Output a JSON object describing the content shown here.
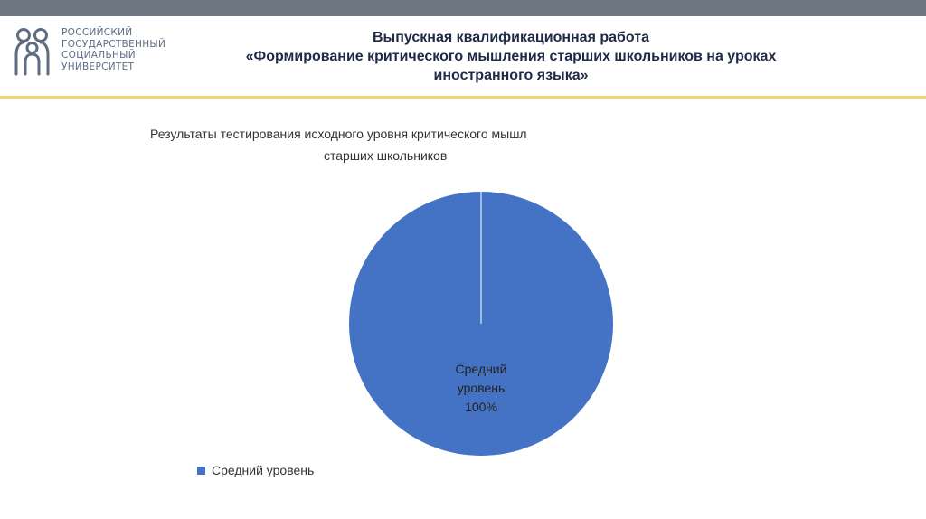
{
  "header": {
    "university": {
      "lines": [
        "Российский",
        "государственный",
        "социальный",
        "университет"
      ]
    },
    "title_lines": [
      "Выпускная квалификационная работа",
      "«Формирование критического мышления старших школьников на уроках",
      "иностранного языка»"
    ]
  },
  "colors": {
    "top_bar": "#6d7781",
    "accent_rule": "#f3d36b",
    "slice": "#4472c4",
    "logo": "#5f6c82"
  },
  "chart_data": {
    "type": "pie",
    "title_lines": [
      "Результаты тестирования исходного уровня критического мышл",
      "старших школьников"
    ],
    "categories": [
      "Средний уровень"
    ],
    "values": [
      100
    ],
    "data_labels": [
      {
        "category_lines": [
          "Средний",
          "уровень"
        ],
        "value": "100%"
      }
    ],
    "legend": {
      "position": "bottom-left",
      "entries": [
        "Средний уровень"
      ]
    }
  }
}
